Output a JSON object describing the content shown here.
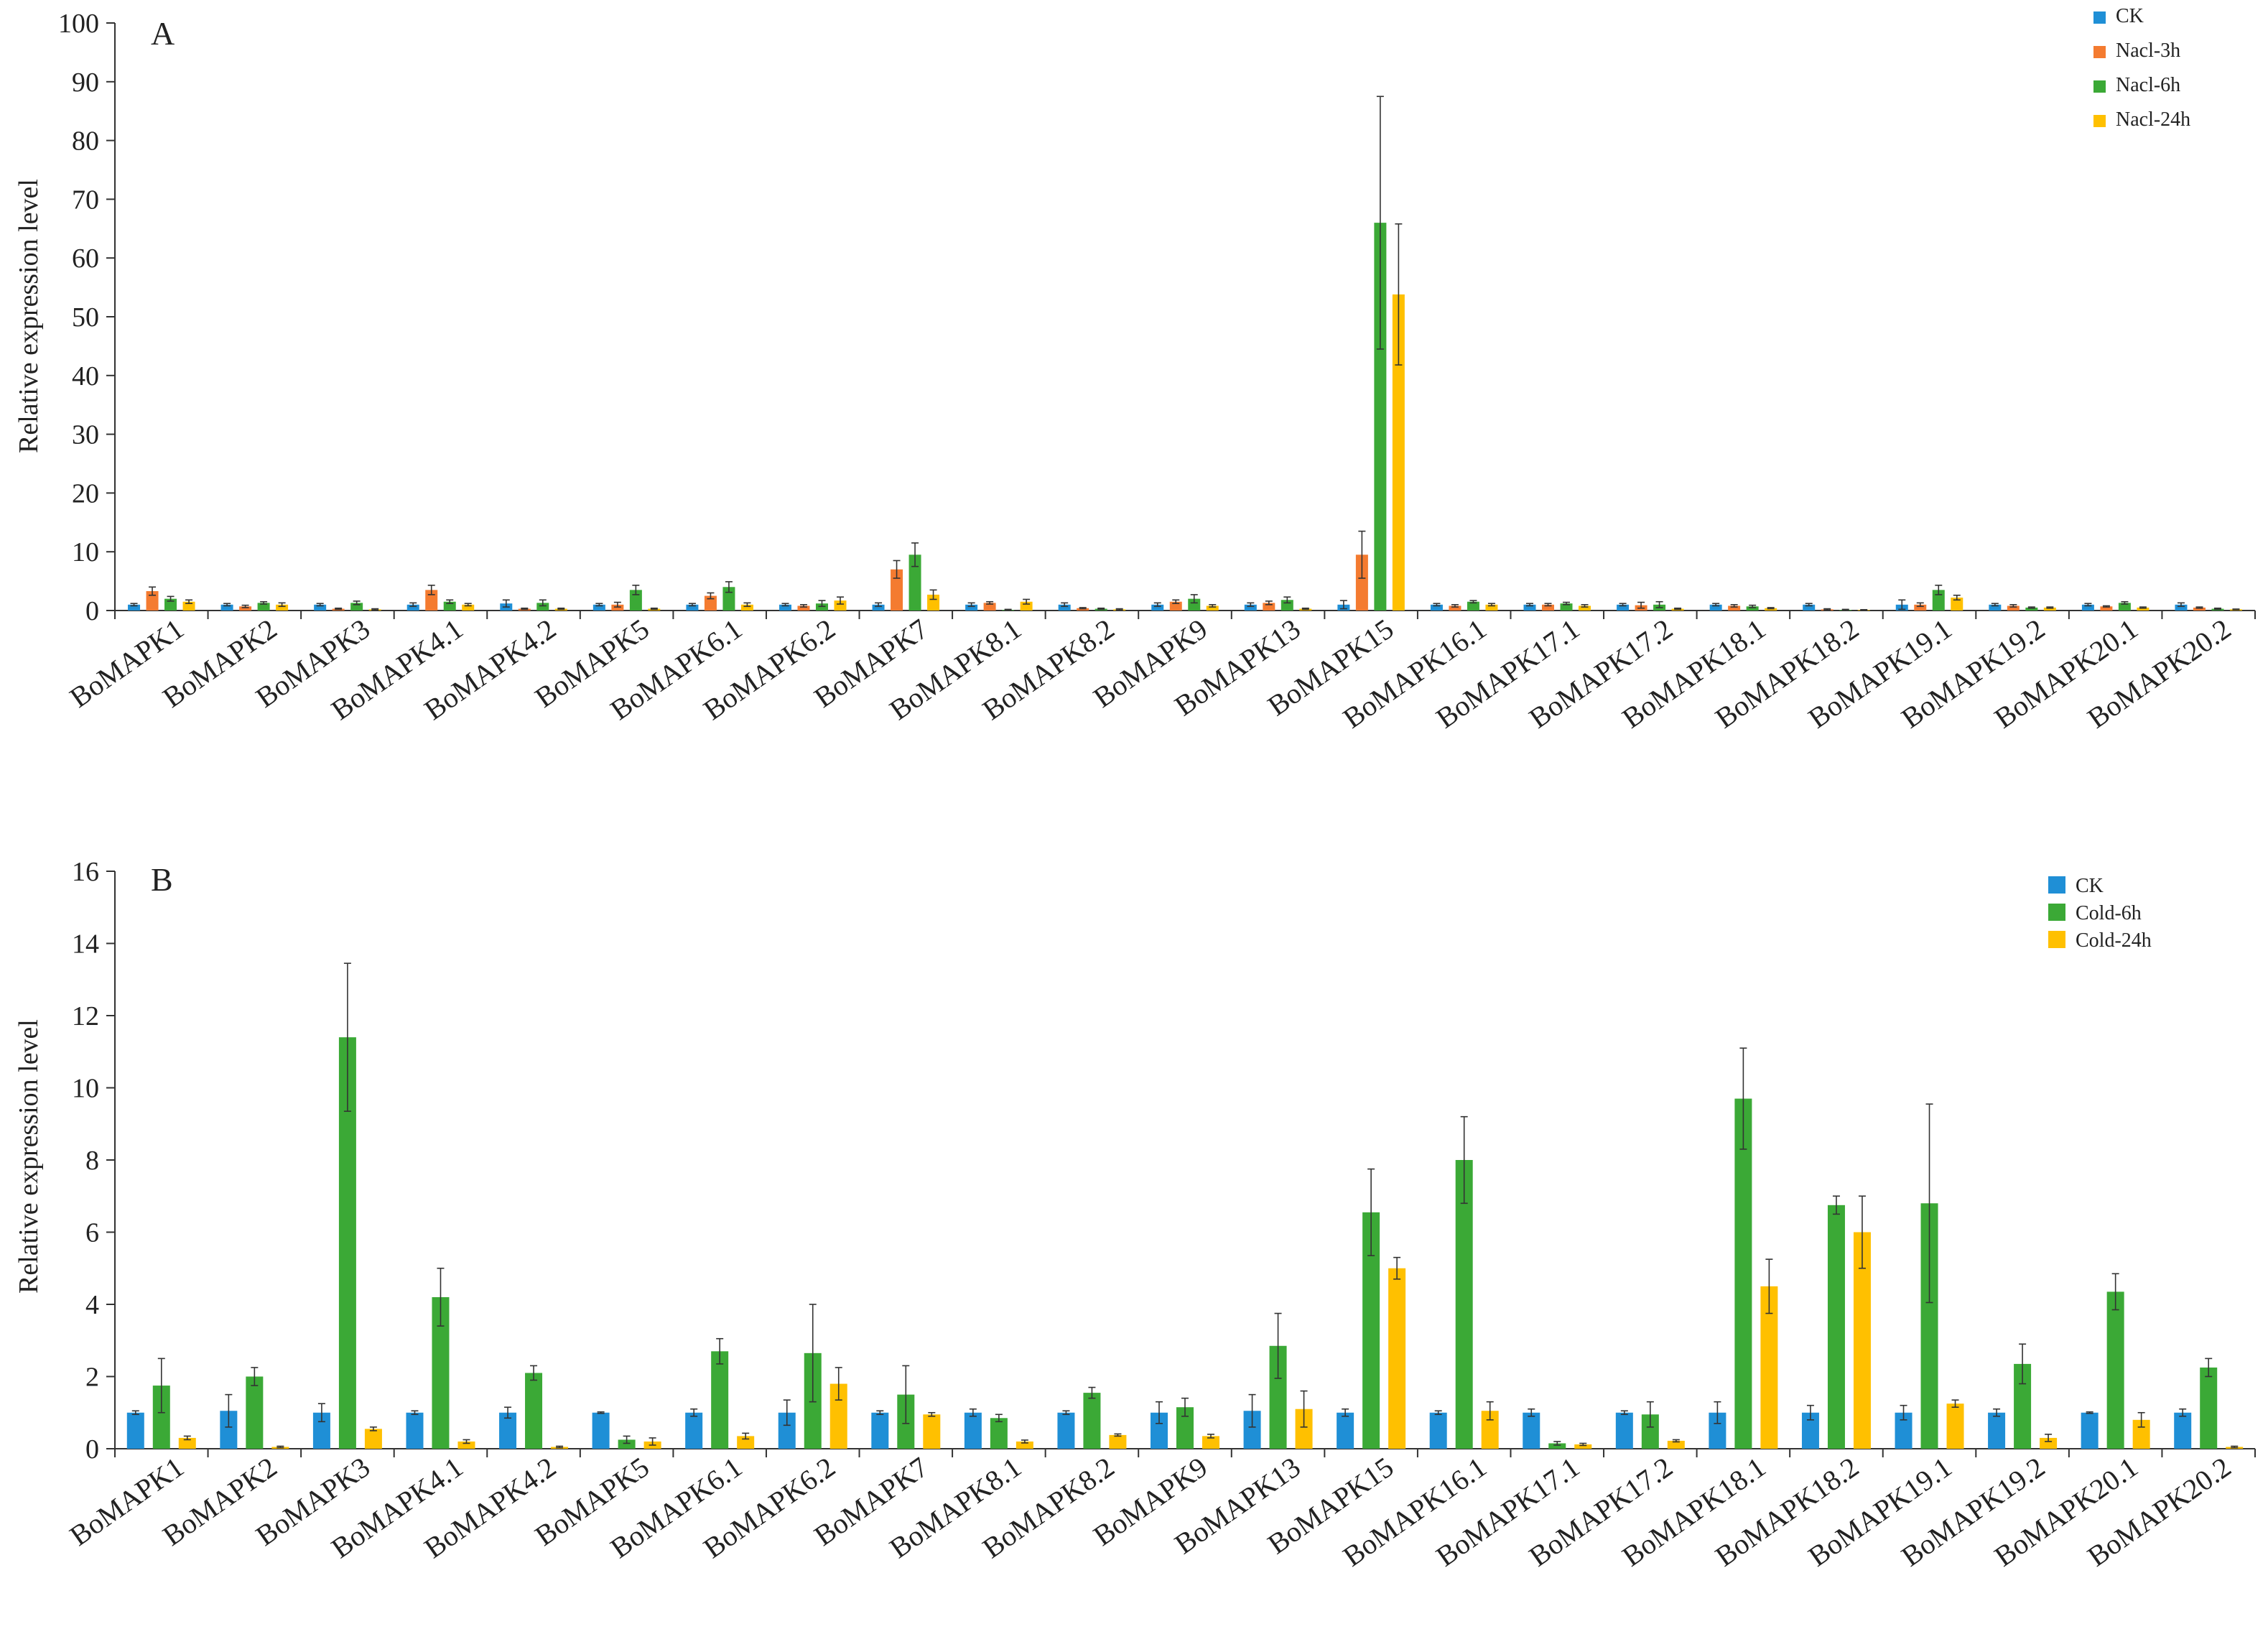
{
  "chart_data": [
    {
      "panel": "A",
      "type": "bar",
      "title": "",
      "xlabel": "",
      "ylabel": "Relative expression level",
      "ylim": [
        0,
        100
      ],
      "yticks": [
        0,
        10,
        20,
        30,
        40,
        50,
        60,
        70,
        80,
        90,
        100
      ],
      "legend_position": "top-right",
      "categories": [
        "BoMAPK1",
        "BoMAPK2",
        "BoMAPK3",
        "BoMAPK4.1",
        "BoMAPK4.2",
        "BoMAPK5",
        "BoMAPK6.1",
        "BoMAPK6.2",
        "BoMAPK7",
        "BoMAPK8.1",
        "BoMAPK8.2",
        "BoMAPK9",
        "BoMAPK13",
        "BoMAPK15",
        "BoMAPK16.1",
        "BoMAPK17.1",
        "BoMAPK17.2",
        "BoMAPK18.1",
        "BoMAPK18.2",
        "BoMAPK19.1",
        "BoMAPK19.2",
        "BoMAPK20.1",
        "BoMAPK20.2"
      ],
      "series": [
        {
          "name": "CK",
          "color": "#1f8fd6",
          "values": [
            1.0,
            1.0,
            1.0,
            1.0,
            1.2,
            1.0,
            1.0,
            1.0,
            1.0,
            1.0,
            1.0,
            1.0,
            1.0,
            1.0,
            1.0,
            1.0,
            1.0,
            1.0,
            1.0,
            1.0,
            1.0,
            1.0,
            1.0
          ],
          "errors": [
            0.2,
            0.2,
            0.2,
            0.3,
            0.6,
            0.2,
            0.2,
            0.2,
            0.3,
            0.3,
            0.3,
            0.3,
            0.3,
            0.7,
            0.2,
            0.2,
            0.2,
            0.2,
            0.2,
            0.8,
            0.2,
            0.2,
            0.3
          ]
        },
        {
          "name": "Nacl-3h",
          "color": "#f47b30",
          "values": [
            3.3,
            0.7,
            0.3,
            3.5,
            0.3,
            1.0,
            2.5,
            0.8,
            7.0,
            1.3,
            0.4,
            1.5,
            1.3,
            9.5,
            0.8,
            1.0,
            0.9,
            0.8,
            0.2,
            1.0,
            0.8,
            0.7,
            0.5
          ],
          "errors": [
            0.7,
            0.2,
            0.1,
            0.8,
            0.1,
            0.4,
            0.5,
            0.2,
            1.5,
            0.2,
            0.1,
            0.3,
            0.3,
            4.0,
            0.2,
            0.2,
            0.5,
            0.2,
            0.1,
            0.3,
            0.2,
            0.1,
            0.1
          ],
          "label_hidden": false
        },
        {
          "name": "Nacl-6h",
          "color": "#3ba936",
          "values": [
            2.0,
            1.3,
            1.3,
            1.5,
            1.3,
            3.5,
            4.0,
            1.2,
            9.5,
            0.1,
            0.3,
            2.0,
            1.8,
            66.0,
            1.5,
            1.2,
            1.0,
            0.7,
            0.1,
            3.5,
            0.5,
            1.3,
            0.3
          ],
          "errors": [
            0.4,
            0.2,
            0.3,
            0.3,
            0.5,
            0.8,
            0.9,
            0.5,
            2.0,
            0.1,
            0.1,
            0.7,
            0.5,
            21.5,
            0.2,
            0.2,
            0.5,
            0.2,
            0.1,
            0.8,
            0.1,
            0.2,
            0.1
          ]
        },
        {
          "name": "Nacl-24h",
          "color": "#ffc000",
          "values": [
            1.5,
            1.0,
            0.2,
            1.0,
            0.3,
            0.3,
            1.0,
            1.7,
            2.7,
            1.5,
            0.2,
            0.8,
            0.3,
            53.8,
            1.0,
            0.8,
            0.3,
            0.4,
            0.1,
            2.2,
            0.5,
            0.5,
            0.2
          ],
          "errors": [
            0.3,
            0.3,
            0.1,
            0.2,
            0.1,
            0.1,
            0.3,
            0.6,
            0.8,
            0.4,
            0.1,
            0.2,
            0.1,
            12.0,
            0.2,
            0.2,
            0.1,
            0.1,
            0.05,
            0.4,
            0.1,
            0.1,
            0.05
          ]
        }
      ]
    },
    {
      "panel": "B",
      "type": "bar",
      "title": "",
      "xlabel": "",
      "ylabel": "Relative expression level",
      "ylim": [
        0,
        16
      ],
      "yticks": [
        0,
        2,
        4,
        6,
        8,
        10,
        12,
        14,
        16
      ],
      "legend_position": "top-right",
      "categories": [
        "BoMAPK1",
        "BoMAPK2",
        "BoMAPK3",
        "BoMAPK4.1",
        "BoMAPK4.2",
        "BoMAPK5",
        "BoMAPK6.1",
        "BoMAPK6.2",
        "BoMAPK7",
        "BoMAPK8.1",
        "BoMAPK8.2",
        "BoMAPK9",
        "BoMAPK13",
        "BoMAPK15",
        "BoMAPK16.1",
        "BoMAPK17.1",
        "BoMAPK17.2",
        "BoMAPK18.1",
        "BoMAPK18.2",
        "BoMAPK19.1",
        "BoMAPK19.2",
        "BoMAPK20.1",
        "BoMAPK20.2"
      ],
      "series": [
        {
          "name": "CK",
          "color": "#1f8fd6",
          "values": [
            1.0,
            1.05,
            1.0,
            1.0,
            1.0,
            1.0,
            1.0,
            1.0,
            1.0,
            1.0,
            1.0,
            1.0,
            1.05,
            1.0,
            1.0,
            1.0,
            1.0,
            1.0,
            1.0,
            1.0,
            1.0,
            1.0,
            1.0
          ],
          "errors": [
            0.05,
            0.45,
            0.25,
            0.05,
            0.15,
            0.02,
            0.1,
            0.35,
            0.05,
            0.1,
            0.05,
            0.3,
            0.45,
            0.1,
            0.05,
            0.1,
            0.05,
            0.3,
            0.2,
            0.2,
            0.1,
            0.02,
            0.1
          ]
        },
        {
          "name": "Cold-6h",
          "color": "#3ba936",
          "values": [
            1.75,
            2.0,
            11.4,
            4.2,
            2.1,
            0.25,
            2.7,
            2.65,
            1.5,
            0.85,
            1.55,
            1.15,
            2.85,
            6.55,
            8.0,
            0.15,
            0.95,
            9.7,
            6.75,
            6.8,
            2.35,
            4.35,
            2.25
          ],
          "errors": [
            0.75,
            0.25,
            2.05,
            0.8,
            0.2,
            0.1,
            0.35,
            1.35,
            0.8,
            0.1,
            0.15,
            0.25,
            0.9,
            1.2,
            1.2,
            0.05,
            0.35,
            1.4,
            0.25,
            2.75,
            0.55,
            0.5,
            0.25
          ]
        },
        {
          "name": "Cold-24h",
          "color": "#ffc000",
          "values": [
            0.3,
            0.05,
            0.55,
            0.2,
            0.05,
            0.2,
            0.35,
            1.8,
            0.95,
            0.2,
            0.38,
            0.35,
            1.1,
            5.0,
            1.05,
            0.12,
            0.22,
            4.5,
            6.0,
            1.25,
            0.3,
            0.8,
            0.05
          ],
          "errors": [
            0.05,
            0.02,
            0.05,
            0.05,
            0.02,
            0.1,
            0.08,
            0.45,
            0.05,
            0.04,
            0.03,
            0.05,
            0.5,
            0.3,
            0.25,
            0.03,
            0.03,
            0.75,
            1.0,
            0.1,
            0.1,
            0.2,
            0.02
          ]
        }
      ]
    }
  ]
}
